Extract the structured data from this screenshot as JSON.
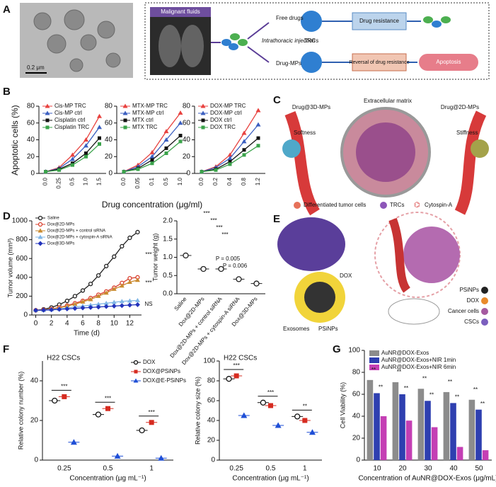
{
  "panels": {
    "labels": [
      "A",
      "B",
      "C",
      "D",
      "E",
      "F",
      "G"
    ]
  },
  "figure_text": {
    "A": {
      "scale": "0.2 μm",
      "box_title": "Malignant fluids",
      "free": "Free drugs",
      "injection": "Intrathoracic injection",
      "mps": "Drug-MPs",
      "trcs": "TRCs",
      "resistance": "Drug resistance",
      "reversal": "Reversal of drug resistance",
      "apoptosis": "Apoptosis"
    },
    "B": {
      "ylabel": "Apoptotic cells (%)",
      "xlabel": "Drug concentration (μg/ml)"
    },
    "C": {
      "left": "Drug@3D-MPs",
      "ecm": "Extracellular matrix",
      "right": "Drug@2D-MPs",
      "soft": "Softness",
      "stiff": "Stiffness",
      "leg1": "Differentiated tumor cells",
      "leg2": "TRCs",
      "leg3": "Cytospin-A"
    },
    "E": {
      "dox": "DOX",
      "exo": "Exosomes",
      "psi": "PSiNPs",
      "leg1": "PSiNPs",
      "leg2": "DOX",
      "leg3": "Cancer cells",
      "leg4": "CSCs"
    }
  },
  "chart_data": [
    {
      "type": "line",
      "categories": [
        "0.0",
        "0.25",
        "0.5",
        "1.0",
        "1.5"
      ],
      "ylim": [
        0,
        80
      ],
      "yticks": [
        0,
        20,
        40,
        60,
        80
      ],
      "series": [
        {
          "name": "Cis-MP TRC",
          "color": "#e8423f",
          "marker": "triangle",
          "values": [
            2,
            7,
            22,
            40,
            68
          ]
        },
        {
          "name": "Cis-MP ctrl",
          "color": "#3b5fc0",
          "marker": "triangle",
          "values": [
            2,
            6,
            17,
            33,
            55
          ]
        },
        {
          "name": "Cisplatin ctrl",
          "color": "#111111",
          "marker": "square",
          "values": [
            2,
            5,
            12,
            24,
            42
          ]
        },
        {
          "name": "Cisplatin TRC",
          "color": "#3aa34a",
          "marker": "square",
          "values": [
            2,
            4,
            10,
            20,
            35
          ]
        }
      ]
    },
    {
      "type": "line",
      "categories": [
        "0.0",
        "0.05",
        "0.1",
        "0.5",
        "1.0"
      ],
      "ylim": [
        0,
        80
      ],
      "yticks": [
        0,
        20,
        40,
        60,
        80
      ],
      "series": [
        {
          "name": "MTX-MP TRC",
          "color": "#e8423f",
          "marker": "triangle",
          "values": [
            2,
            10,
            25,
            50,
            72
          ]
        },
        {
          "name": "MTX-MP ctrl",
          "color": "#3b5fc0",
          "marker": "triangle",
          "values": [
            2,
            8,
            20,
            40,
            60
          ]
        },
        {
          "name": "MTX ctrl",
          "color": "#111111",
          "marker": "square",
          "values": [
            2,
            6,
            16,
            30,
            45
          ]
        },
        {
          "name": "MTX TRC",
          "color": "#3aa34a",
          "marker": "square",
          "values": [
            2,
            5,
            12,
            24,
            38
          ]
        }
      ]
    },
    {
      "type": "line",
      "categories": [
        "0.0",
        "0.2",
        "0.4",
        "0.8",
        "1.2"
      ],
      "ylim": [
        0,
        80
      ],
      "yticks": [
        0,
        20,
        40,
        60,
        80
      ],
      "series": [
        {
          "name": "DOX-MP TRC",
          "color": "#e8423f",
          "marker": "triangle",
          "values": [
            2,
            8,
            22,
            48,
            75
          ]
        },
        {
          "name": "DOX-MP ctrl",
          "color": "#3b5fc0",
          "marker": "triangle",
          "values": [
            2,
            7,
            18,
            38,
            58
          ]
        },
        {
          "name": "DOX ctrl",
          "color": "#111111",
          "marker": "square",
          "values": [
            2,
            5,
            14,
            28,
            42
          ]
        },
        {
          "name": "DOX TRC",
          "color": "#3aa34a",
          "marker": "square",
          "values": [
            2,
            4,
            11,
            22,
            33
          ]
        }
      ]
    },
    {
      "type": "line",
      "xlabel": "Time (d)",
      "ylabel": "Tumor volume (mm³)",
      "x": [
        0,
        1,
        2,
        3,
        4,
        5,
        6,
        7,
        8,
        9,
        10,
        11,
        12,
        13
      ],
      "xlim": [
        -0.5,
        13.5
      ],
      "xticks": [
        0,
        2,
        4,
        6,
        8,
        10,
        12
      ],
      "ylim": [
        0,
        1000
      ],
      "yticks": [
        0,
        200,
        400,
        600,
        800,
        1000
      ],
      "annotations": [
        "***",
        "***",
        "NS"
      ],
      "series": [
        {
          "name": "Saline",
          "color": "#222222",
          "marker": "circle",
          "values": [
            50,
            60,
            80,
            110,
            150,
            200,
            260,
            330,
            420,
            520,
            620,
            730,
            820,
            880
          ]
        },
        {
          "name": "Dox@2D-MPs",
          "color": "#d9412f",
          "marker": "circle",
          "values": [
            50,
            55,
            65,
            80,
            100,
            125,
            150,
            180,
            215,
            250,
            290,
            340,
            390,
            400
          ]
        },
        {
          "name": "Dox@2D-MPs + control siRNA",
          "color": "#c98a2e",
          "marker": "triangle",
          "values": [
            50,
            55,
            63,
            75,
            95,
            115,
            140,
            165,
            200,
            235,
            275,
            310,
            350,
            370
          ]
        },
        {
          "name": "Dox@2D-MPs + cytospin-A siRNA",
          "color": "#7fb6e6",
          "marker": "triangle",
          "values": [
            50,
            52,
            58,
            65,
            75,
            85,
            95,
            105,
            115,
            125,
            135,
            145,
            150,
            155
          ]
        },
        {
          "name": "Dox@3D-MPs",
          "color": "#2233bb",
          "marker": "diamond",
          "values": [
            50,
            52,
            55,
            60,
            65,
            70,
            75,
            80,
            85,
            90,
            95,
            100,
            105,
            110
          ]
        }
      ]
    },
    {
      "type": "dot",
      "ylabel": "Tumor weight (g)",
      "categories": [
        "Saline",
        "Dox@2D-MPs",
        "Dox@2D-MPs + control siRNA",
        "Dox@2D-MPs + cytospin-A siRNA",
        "Dox@3D-MPs"
      ],
      "values": [
        1.05,
        0.68,
        0.68,
        0.4,
        0.28
      ],
      "color": "#222222",
      "marker": "circle",
      "ylim": [
        0,
        2
      ],
      "yticks": [
        {
          "value": 0,
          "label": "0.0"
        },
        {
          "value": 0.5,
          "label": "0.5"
        },
        {
          "value": 1,
          "label": "1.0"
        },
        {
          "value": 1.5,
          "label": "1.5"
        },
        {
          "value": 2,
          "label": "2.0"
        }
      ],
      "annotations": [
        "***",
        "***",
        "***",
        "***",
        "P = 0.005",
        "P = 0.006"
      ]
    },
    {
      "type": "dot",
      "title": "H22 CSCs",
      "ylabel": "Relative colony number (%)",
      "xlabel": "Concentration (μg mL⁻¹)",
      "categories": [
        "0.25",
        "0.5",
        "1"
      ],
      "ylim": [
        0,
        50
      ],
      "yticks": [
        0,
        20,
        40
      ],
      "annotations": [
        "***",
        "***",
        "***"
      ],
      "series": [
        {
          "name": "DOX",
          "color": "#111111",
          "marker": "circle",
          "values": [
            30,
            23,
            15
          ]
        },
        {
          "name": "DOX@PSiNPs",
          "color": "#d62b20",
          "marker": "square",
          "values": [
            32,
            26,
            19
          ]
        },
        {
          "name": "DOX@E-PSiNPs",
          "color": "#1f4fd6",
          "marker": "triangle",
          "values": [
            9,
            2,
            1
          ]
        }
      ]
    },
    {
      "type": "dot",
      "title": "H22 CSCs",
      "ylabel": "Relative colony size (%)",
      "xlabel": "Concentration (μg mL⁻¹)",
      "categories": [
        "0.25",
        "0.5",
        "1"
      ],
      "ylim": [
        0,
        100
      ],
      "yticks": [
        0,
        20,
        40,
        60,
        80,
        100
      ],
      "annotations": [
        "***",
        "***",
        "**"
      ],
      "series": [
        {
          "name": "DOX",
          "color": "#111111",
          "marker": "circle",
          "values": [
            82,
            58,
            44
          ]
        },
        {
          "name": "DOX@PSiNPs",
          "color": "#d62b20",
          "marker": "square",
          "values": [
            85,
            55,
            40
          ]
        },
        {
          "name": "DOX@E-PSiNPs",
          "color": "#1f4fd6",
          "marker": "triangle",
          "values": [
            45,
            35,
            28
          ]
        }
      ]
    },
    {
      "type": "bar",
      "ylabel": "Cell Viability (%)",
      "xlabel": "Concentration of AuNR@DOX-Exos (μg/mL)",
      "categories": [
        "10",
        "20",
        "30",
        "40",
        "50"
      ],
      "ylim": [
        0,
        100
      ],
      "yticks": [
        0,
        20,
        40,
        60,
        80,
        100
      ],
      "annotations": [
        "**",
        "**",
        "**",
        "**",
        "**",
        "**",
        "**",
        "**",
        "**",
        "**"
      ],
      "series": [
        {
          "name": "AuNR@DOX-Exos",
          "color": "#8c8c8c",
          "values": [
            73,
            71,
            65,
            62,
            55
          ]
        },
        {
          "name": "AuNR@DOX-Exos+NIR 1min",
          "color": "#2e3fb0",
          "values": [
            61,
            60,
            54,
            52,
            46
          ]
        },
        {
          "name": "AuNR@DOX-Exos+NIR 6min",
          "color": "#c43fb4",
          "values": [
            40,
            36,
            30,
            12,
            9
          ]
        }
      ]
    }
  ]
}
